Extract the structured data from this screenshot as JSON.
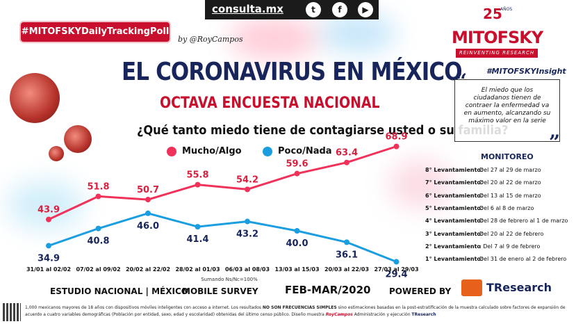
{
  "header": {
    "site": "consulta.mx",
    "hashtag": "#MITOFSKYDailyTrackingPoll",
    "byline": "by @RoyCampos"
  },
  "logo": {
    "anios": "25",
    "anios_label": "AÑOS",
    "brand": "MITOFSKY",
    "slogan": "REINVENTING RESEARCH"
  },
  "title": "EL CORONAVIRUS EN MÉXICO",
  "subtitle": "OCTAVA ENCUESTA NACIONAL",
  "question": "¿Qué tanto miedo tiene de contagiarse usted o su familia?",
  "insight": {
    "title": "#MITOFSKYInsight",
    "text": "El miedo que los ciudadanos tienen de contraer la enfermedad va en aumento, alcanzando su máximo valor en la serie"
  },
  "monitoreo": {
    "title": "MONITOREO",
    "rows": [
      {
        "label": "8° Levantamiento:",
        "value": "Del 27 al 29 de marzo"
      },
      {
        "label": "7° Levantamiento:",
        "value": "Del 20 al 22 de marzo"
      },
      {
        "label": "6° Levantamiento:",
        "value": "Del 13 al 15 de marzo"
      },
      {
        "label": "5° Levantamiento:",
        "value": "Del 6 al 8 de marzo"
      },
      {
        "label": "4° Levantamiento:",
        "value": "Del 28 de febrero al 1 de marzo"
      },
      {
        "label": "3° Levantamiento:",
        "value": "Del 20 al 22 de febrero"
      },
      {
        "label": "2° Levantamiento",
        "value": ": Del 7 al 9 de febrero"
      },
      {
        "label": "1° Levantamiento:",
        "value": "Del 31 de enero al 2 de febrero"
      }
    ]
  },
  "colors": {
    "mucho": "#f0325a",
    "poco": "#1a9ee0",
    "brand_red": "#c8102e",
    "navy": "#17255a"
  },
  "chart_data": {
    "type": "line",
    "title": "¿Qué tanto miedo tiene de contagiarse usted o su familia?",
    "categories": [
      "31/01 al 02/02",
      "07/02 al 09/02",
      "20/02 al 22/02",
      "28/02 al 01/03",
      "06/03 al 08/03",
      "13/03 al 15/03",
      "20/03 al 22/03",
      "27/03 al 29/03"
    ],
    "series": [
      {
        "name": "Mucho/Algo",
        "values": [
          43.9,
          51.8,
          50.7,
          55.8,
          54.2,
          59.6,
          63.4,
          68.9
        ]
      },
      {
        "name": "Poco/Nada",
        "values": [
          34.9,
          40.8,
          46.0,
          41.4,
          43.2,
          40.0,
          36.1,
          29.4
        ]
      }
    ],
    "note": "Sumando Ns/Nc=100%",
    "ylim": [
      25,
      75
    ],
    "grid": false,
    "legend": "top"
  },
  "footer": {
    "estudio": "ESTUDIO NACIONAL | MÉXICO",
    "survey": "MOBILE SURVEY",
    "period": "FEB-MAR/2020",
    "powered": "POWERED BY",
    "tresearch": "TResearch",
    "footnote_a": "1,000 mexicanos mayores de 18 años con dispositivos móviles inteligentes con acceso a internet. Los resultados ",
    "footnote_b": "NO SON FRECUENCIAS SIMPLES",
    "footnote_c": " sino estimaciones basadas en la post-estratificación de la muestra calculado sobre factores de expansión de acuerdo a cuatro variables demográficas (Población por entidad, sexo, edad y escolaridad) obtenidas del último censo público. Diseño muestra ",
    "footnote_d": "RoyCampos",
    "footnote_e": " Administración y ejecución ",
    "footnote_f": "TResearch"
  }
}
